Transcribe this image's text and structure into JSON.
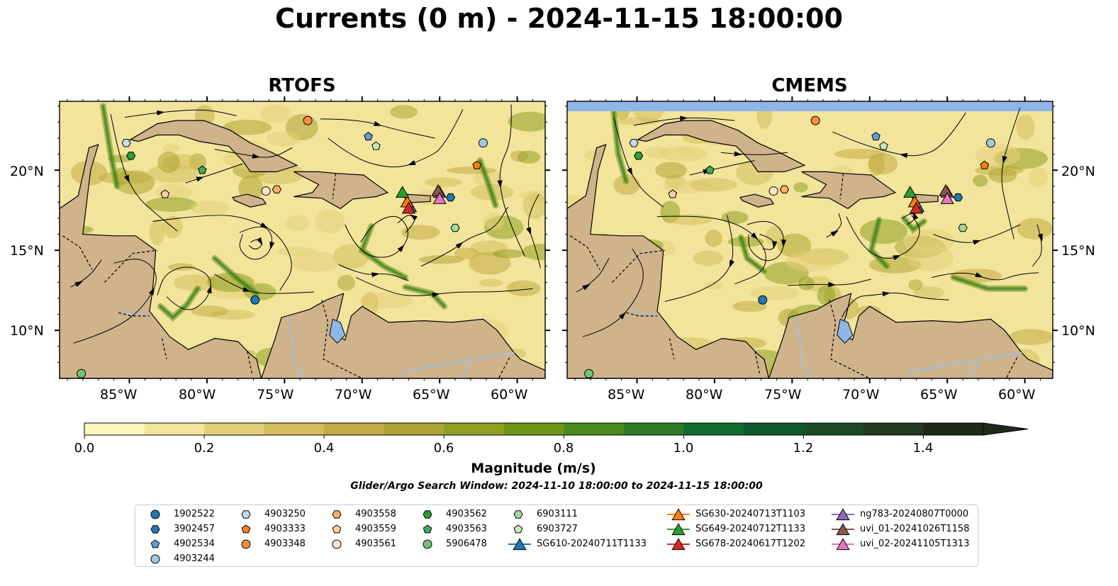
{
  "title": "Currents (0 m) - 2024-11-15 18:00:00",
  "panels": [
    {
      "title": "RTOFS"
    },
    {
      "title": "CMEMS"
    }
  ],
  "lat_labels": [
    "20°N",
    "15°N",
    "10°N"
  ],
  "lon_labels": [
    "85°W",
    "80°W",
    "75°W",
    "70°W",
    "65°W",
    "60°W"
  ],
  "colorbar": {
    "label": "Magnitude (m/s)",
    "ticks": [
      "0.0",
      "0.2",
      "0.4",
      "0.6",
      "0.8",
      "1.0",
      "1.2",
      "1.4"
    ],
    "min": 0.0,
    "max": 1.5,
    "extend": "max",
    "colors": [
      "#fdf6bf",
      "#f2e49b",
      "#e3cf78",
      "#d4bd5c",
      "#c3ac44",
      "#aea435",
      "#90a022",
      "#6f9617",
      "#4c8a1c",
      "#2d7a26",
      "#106b2d",
      "#0c5a2a",
      "#1b4b24",
      "#21391f",
      "#1d2a18"
    ]
  },
  "search_window": "Glider/Argo Search Window: 2024-11-10 18:00:00 to 2024-11-15 18:00:00",
  "legend": {
    "columns": [
      [
        {
          "label": "1902522",
          "marker": "circle",
          "color": "#1f77b4"
        },
        {
          "label": "3902457",
          "marker": "hexagon",
          "color": "#1f77b4"
        },
        {
          "label": "4902534",
          "marker": "pentagon",
          "color": "#5a9fd4"
        },
        {
          "label": "4903244",
          "marker": "circle",
          "color": "#9ecae1"
        }
      ],
      [
        {
          "label": "4903250",
          "marker": "hexagon",
          "color": "#c6dbef"
        },
        {
          "label": "4903333",
          "marker": "pentagon",
          "color": "#ff7f0e"
        },
        {
          "label": "4903348",
          "marker": "circle",
          "color": "#fd8d3c"
        }
      ],
      [
        {
          "label": "4903558",
          "marker": "hexagon",
          "color": "#fdae6b"
        },
        {
          "label": "4903559",
          "marker": "pentagon",
          "color": "#fdd0a2"
        },
        {
          "label": "4903561",
          "marker": "circle",
          "color": "#fee6ce"
        }
      ],
      [
        {
          "label": "4903562",
          "marker": "hexagon",
          "color": "#2ca02c"
        },
        {
          "label": "4903563",
          "marker": "pentagon",
          "color": "#41ab5d"
        },
        {
          "label": "5906478",
          "marker": "circle",
          "color": "#74c476"
        }
      ],
      [
        {
          "label": "6903111",
          "marker": "hexagon",
          "color": "#a1d99b"
        },
        {
          "label": "6903727",
          "marker": "pentagon",
          "color": "#c7e9c0"
        },
        {
          "label": "SG610-20240711T1133",
          "marker": "triangle",
          "color": "#1f77b4"
        }
      ],
      [
        {
          "label": "SG630-20240713T1103",
          "marker": "triangle",
          "color": "#ff7f0e"
        },
        {
          "label": "SG649-20240712T1133",
          "marker": "triangle",
          "color": "#2ca02c"
        },
        {
          "label": "SG678-20240617T1202",
          "marker": "triangle",
          "color": "#d62728"
        }
      ],
      [
        {
          "label": "ng783-20240807T0000",
          "marker": "triangle",
          "color": "#9467bd"
        },
        {
          "label": "uvi_01-20241026T1158",
          "marker": "triangle",
          "color": "#8c564b"
        },
        {
          "label": "uvi_02-20241105T1313",
          "marker": "triangle",
          "color": "#e377c2"
        }
      ]
    ]
  },
  "observations": [
    {
      "id": "1902522",
      "lon": -76.9,
      "lat": 11.9
    },
    {
      "id": "3902457",
      "lon": -64.3,
      "lat": 18.3
    },
    {
      "id": "4902534",
      "lon": -69.6,
      "lat": 22.1
    },
    {
      "id": "4903244",
      "lon": -62.2,
      "lat": 21.7
    },
    {
      "id": "4903250",
      "lon": -85.2,
      "lat": 21.7
    },
    {
      "id": "4903333",
      "lon": -62.6,
      "lat": 20.3
    },
    {
      "id": "4903348",
      "lon": -73.5,
      "lat": 23.1
    },
    {
      "id": "4903558",
      "lon": -75.5,
      "lat": 18.8
    },
    {
      "id": "4903559",
      "lon": -82.7,
      "lat": 18.5
    },
    {
      "id": "4903561",
      "lon": -76.2,
      "lat": 18.7
    },
    {
      "id": "4903562",
      "lon": -84.9,
      "lat": 20.9
    },
    {
      "id": "4903563",
      "lon": -80.3,
      "lat": 20.0
    },
    {
      "id": "5906478",
      "lon": -88.1,
      "lat": 7.3
    },
    {
      "id": "6903111",
      "lon": -64.0,
      "lat": 16.4
    },
    {
      "id": "6903727",
      "lon": -69.1,
      "lat": 21.5
    },
    {
      "id": "SG610-20240711T1133",
      "lon": -66.9,
      "lat": 17.7
    },
    {
      "id": "SG630-20240713T1103",
      "lon": -67.1,
      "lat": 18.0
    },
    {
      "id": "SG649-20240712T1133",
      "lon": -67.4,
      "lat": 18.6
    },
    {
      "id": "SG678-20240617T1202",
      "lon": -67.0,
      "lat": 17.6
    },
    {
      "id": "ng783-20240807T0000",
      "lon": -65.0,
      "lat": 18.6
    },
    {
      "id": "uvi_01-20241026T1158",
      "lon": -65.1,
      "lat": 18.7
    },
    {
      "id": "uvi_02-20241105T1313",
      "lon": -65.0,
      "lat": 18.2
    }
  ],
  "map_extent": {
    "lon_min": -89.5,
    "lon_max": -58.2,
    "lat_min": 7.0,
    "lat_max": 24.3
  },
  "colors": {
    "land": "#cfb38b",
    "water_fill": "#8eb7e8",
    "river": "#a5bfe0"
  }
}
